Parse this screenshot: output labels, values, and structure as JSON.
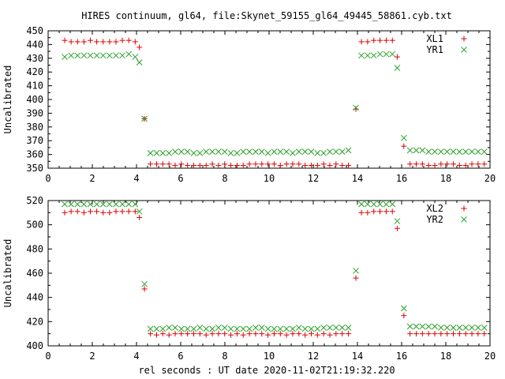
{
  "title": "HIRES continuum, gl64, file:Skynet_59155_gl64_49445_58861.cyb.txt",
  "xlabel": "rel seconds : UT date 2020-11-02T21:19:32.220",
  "colors": {
    "series1": "#dd0000",
    "series2": "#2aa22a"
  },
  "chart_data": [
    {
      "type": "scatter",
      "ylabel": "Uncalibrated",
      "xlim": [
        0,
        20
      ],
      "ylim": [
        350,
        450
      ],
      "xticks": [
        "0",
        "2",
        "4",
        "6",
        "8",
        "10",
        "12",
        "14",
        "16",
        "18",
        "20"
      ],
      "yticks": [
        "350",
        "360",
        "370",
        "380",
        "390",
        "400",
        "410",
        "420",
        "430",
        "440",
        "450"
      ],
      "xtick_values": [
        0,
        2,
        4,
        6,
        8,
        10,
        12,
        14,
        16,
        18,
        20
      ],
      "ytick_values": [
        350,
        360,
        370,
        380,
        390,
        400,
        410,
        420,
        430,
        440,
        450
      ],
      "legend_position": "top-right",
      "series": [
        {
          "name": "XL1",
          "marker": "plus",
          "x": [
            0.75,
            1.04,
            1.33,
            1.62,
            1.91,
            2.2,
            2.49,
            2.78,
            3.07,
            3.36,
            3.65,
            3.94,
            4.13,
            4.36,
            4.63,
            4.91,
            5.19,
            5.47,
            5.75,
            6.03,
            6.31,
            6.59,
            6.87,
            7.15,
            7.43,
            7.71,
            7.99,
            8.27,
            8.55,
            8.83,
            9.11,
            9.39,
            9.67,
            9.95,
            10.23,
            10.51,
            10.79,
            11.07,
            11.35,
            11.63,
            11.91,
            12.19,
            12.47,
            12.75,
            13.03,
            13.31,
            13.59,
            13.93,
            14.18,
            14.46,
            14.74,
            15.02,
            15.3,
            15.58,
            15.8,
            16.1,
            16.38,
            16.66,
            16.94,
            17.22,
            17.5,
            17.78,
            18.06,
            18.34,
            18.62,
            18.9,
            19.18,
            19.46,
            19.74
          ],
          "y": [
            443,
            442,
            442,
            442,
            443,
            442,
            442,
            442,
            442,
            443,
            443,
            442,
            438,
            386,
            353,
            353,
            353,
            353,
            352,
            353,
            352,
            352,
            352,
            352,
            353,
            352,
            353,
            352,
            352,
            352,
            353,
            353,
            353,
            353,
            353,
            352,
            353,
            353,
            353,
            352,
            352,
            352,
            353,
            352,
            353,
            352,
            352,
            393,
            442,
            442,
            443,
            443,
            443,
            443,
            431,
            366,
            353,
            353,
            353,
            352,
            352,
            353,
            353,
            353,
            352,
            352,
            353,
            353,
            353
          ]
        },
        {
          "name": "YR1",
          "marker": "cross",
          "x": [
            0.75,
            1.04,
            1.33,
            1.62,
            1.91,
            2.2,
            2.49,
            2.78,
            3.07,
            3.36,
            3.65,
            3.94,
            4.13,
            4.36,
            4.63,
            4.91,
            5.19,
            5.47,
            5.75,
            6.03,
            6.31,
            6.59,
            6.87,
            7.15,
            7.43,
            7.71,
            7.99,
            8.27,
            8.55,
            8.83,
            9.11,
            9.39,
            9.67,
            9.95,
            10.23,
            10.51,
            10.79,
            11.07,
            11.35,
            11.63,
            11.91,
            12.19,
            12.47,
            12.75,
            13.03,
            13.31,
            13.59,
            13.93,
            14.18,
            14.46,
            14.74,
            15.02,
            15.3,
            15.58,
            15.8,
            16.1,
            16.38,
            16.66,
            16.94,
            17.22,
            17.5,
            17.78,
            18.06,
            18.34,
            18.62,
            18.9,
            19.18,
            19.46,
            19.74
          ],
          "y": [
            431,
            432,
            432,
            432,
            432,
            432,
            432,
            432,
            432,
            432,
            433,
            431,
            427,
            386,
            361,
            361,
            361,
            361,
            362,
            362,
            362,
            361,
            361,
            362,
            362,
            362,
            362,
            361,
            361,
            362,
            362,
            362,
            362,
            361,
            362,
            362,
            362,
            361,
            362,
            362,
            362,
            361,
            361,
            362,
            362,
            362,
            363,
            394,
            432,
            432,
            432,
            433,
            433,
            433,
            423,
            372,
            363,
            363,
            363,
            362,
            362,
            362,
            362,
            362,
            362,
            362,
            362,
            362,
            362
          ]
        }
      ]
    },
    {
      "type": "scatter",
      "ylabel": "Uncalibrated",
      "xlim": [
        0,
        20
      ],
      "ylim": [
        400,
        520
      ],
      "xticks": [
        "0",
        "2",
        "4",
        "6",
        "8",
        "10",
        "12",
        "14",
        "16",
        "18",
        "20"
      ],
      "yticks": [
        "400",
        "420",
        "440",
        "460",
        "480",
        "500",
        "520"
      ],
      "xtick_values": [
        0,
        2,
        4,
        6,
        8,
        10,
        12,
        14,
        16,
        18,
        20
      ],
      "ytick_values": [
        400,
        420,
        440,
        460,
        480,
        500,
        520
      ],
      "legend_position": "top-right",
      "series": [
        {
          "name": "XL2",
          "marker": "plus",
          "x": [
            0.75,
            1.04,
            1.33,
            1.62,
            1.91,
            2.2,
            2.49,
            2.78,
            3.07,
            3.36,
            3.65,
            3.94,
            4.13,
            4.36,
            4.63,
            4.91,
            5.19,
            5.47,
            5.75,
            6.03,
            6.31,
            6.59,
            6.87,
            7.15,
            7.43,
            7.71,
            7.99,
            8.27,
            8.55,
            8.83,
            9.11,
            9.39,
            9.67,
            9.95,
            10.23,
            10.51,
            10.79,
            11.07,
            11.35,
            11.63,
            11.91,
            12.19,
            12.47,
            12.75,
            13.03,
            13.31,
            13.59,
            13.93,
            14.18,
            14.46,
            14.74,
            15.02,
            15.3,
            15.58,
            15.8,
            16.1,
            16.38,
            16.66,
            16.94,
            17.22,
            17.5,
            17.78,
            18.06,
            18.34,
            18.62,
            18.9,
            19.18,
            19.46,
            19.74
          ],
          "y": [
            510,
            511,
            511,
            510,
            511,
            511,
            510,
            510,
            511,
            511,
            511,
            511,
            506,
            447,
            410,
            409,
            410,
            409,
            410,
            410,
            410,
            410,
            410,
            409,
            410,
            410,
            410,
            409,
            410,
            409,
            410,
            410,
            410,
            409,
            410,
            410,
            409,
            410,
            410,
            409,
            410,
            409,
            410,
            409,
            410,
            410,
            410,
            456,
            510,
            510,
            511,
            511,
            511,
            511,
            497,
            425,
            410,
            410,
            410,
            410,
            410,
            410,
            410,
            410,
            410,
            410,
            410,
            410,
            410
          ]
        },
        {
          "name": "YR2",
          "marker": "cross",
          "x": [
            0.75,
            1.04,
            1.33,
            1.62,
            1.91,
            2.2,
            2.49,
            2.78,
            3.07,
            3.36,
            3.65,
            3.94,
            4.13,
            4.36,
            4.63,
            4.91,
            5.19,
            5.47,
            5.75,
            6.03,
            6.31,
            6.59,
            6.87,
            7.15,
            7.43,
            7.71,
            7.99,
            8.27,
            8.55,
            8.83,
            9.11,
            9.39,
            9.67,
            9.95,
            10.23,
            10.51,
            10.79,
            11.07,
            11.35,
            11.63,
            11.91,
            12.19,
            12.47,
            12.75,
            13.03,
            13.31,
            13.59,
            13.93,
            14.18,
            14.46,
            14.74,
            15.02,
            15.3,
            15.58,
            15.8,
            16.1,
            16.38,
            16.66,
            16.94,
            17.22,
            17.5,
            17.78,
            18.06,
            18.34,
            18.62,
            18.9,
            19.18,
            19.46,
            19.74
          ],
          "y": [
            517,
            517,
            517,
            517,
            517,
            517,
            517,
            517,
            517,
            517,
            517,
            517,
            511,
            451,
            414,
            414,
            414,
            415,
            415,
            414,
            414,
            414,
            415,
            414,
            414,
            415,
            415,
            414,
            414,
            414,
            414,
            415,
            415,
            414,
            414,
            414,
            414,
            414,
            415,
            414,
            414,
            414,
            415,
            415,
            415,
            415,
            415,
            462,
            517,
            517,
            517,
            517,
            517,
            517,
            503,
            431,
            416,
            416,
            416,
            416,
            416,
            415,
            415,
            415,
            415,
            415,
            415,
            415,
            415
          ]
        }
      ]
    }
  ]
}
